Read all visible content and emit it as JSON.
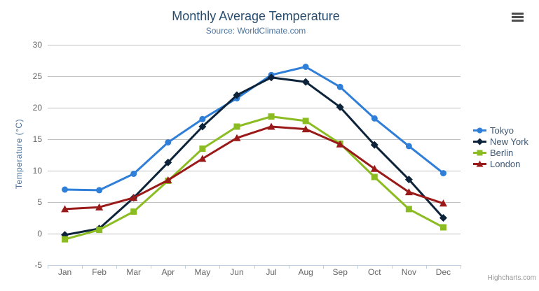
{
  "chart_data": {
    "type": "line",
    "title": "Monthly Average Temperature",
    "subtitle": "Source: WorldClimate.com",
    "xlabel": "",
    "ylabel": "Temperature (°C)",
    "ylim": [
      -5,
      30
    ],
    "yticks": [
      -5,
      0,
      5,
      10,
      15,
      20,
      25,
      30
    ],
    "grid": true,
    "legend_position": "right",
    "categories": [
      "Jan",
      "Feb",
      "Mar",
      "Apr",
      "May",
      "Jun",
      "Jul",
      "Aug",
      "Sep",
      "Oct",
      "Nov",
      "Dec"
    ],
    "series": [
      {
        "name": "Tokyo",
        "color": "#2f7ed8",
        "marker": "circle",
        "values": [
          7.0,
          6.9,
          9.5,
          14.5,
          18.2,
          21.5,
          25.2,
          26.5,
          23.3,
          18.3,
          13.9,
          9.6
        ]
      },
      {
        "name": "New York",
        "color": "#0d233a",
        "marker": "diamond",
        "values": [
          -0.2,
          0.8,
          5.7,
          11.3,
          17.0,
          22.0,
          24.8,
          24.1,
          20.1,
          14.1,
          8.6,
          2.5
        ]
      },
      {
        "name": "Berlin",
        "color": "#8bbc21",
        "marker": "square",
        "values": [
          -0.9,
          0.6,
          3.5,
          8.4,
          13.5,
          17.0,
          18.6,
          17.9,
          14.3,
          9.0,
          3.9,
          1.0
        ]
      },
      {
        "name": "London",
        "color": "#9a1919",
        "marker": "triangle",
        "values": [
          3.9,
          4.2,
          5.7,
          8.5,
          11.9,
          15.2,
          17.0,
          16.6,
          14.2,
          10.3,
          6.6,
          4.8
        ]
      }
    ]
  },
  "credits": "Highcharts.com",
  "styles": {
    "title_color": "#274b6d",
    "subtitle_color": "#4d759e",
    "axis_label_color": "#666666",
    "legend_text_color": "#3E576F",
    "gridline_color": "#c0c0c0",
    "axis_line_color": "#C0D0E0",
    "hamburger_color": "#4d4d4d",
    "credits_color": "#999999"
  }
}
